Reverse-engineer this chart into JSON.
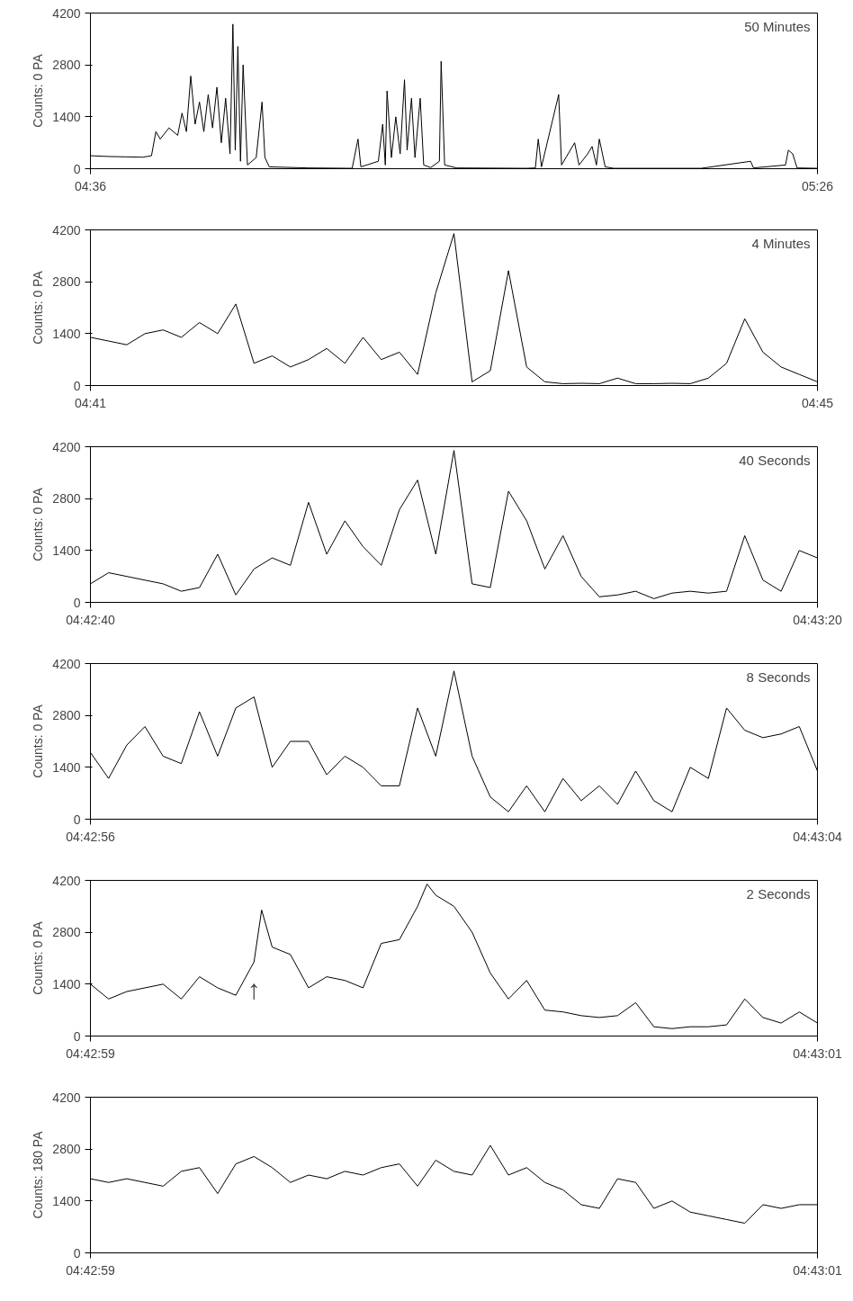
{
  "chart_data": [
    {
      "type": "line",
      "ylabel": "Counts: 0 PA",
      "annotations": [
        "50 Minutes"
      ],
      "xlim": [
        4.6,
        5.433333
      ],
      "xticks": [
        {
          "value": 4.6,
          "label": "04:36"
        },
        {
          "value": 5.433333,
          "label": "05:26"
        }
      ],
      "ylim": [
        0,
        4200
      ],
      "yticks": [
        0,
        1400,
        2800,
        4200
      ],
      "series": [
        {
          "color": "#000000",
          "x": [
            4.6,
            4.62,
            4.64,
            4.66,
            4.67,
            4.675,
            4.68,
            4.69,
            4.7,
            4.705,
            4.71,
            4.715,
            4.72,
            4.725,
            4.73,
            4.735,
            4.74,
            4.745,
            4.75,
            4.755,
            4.76,
            4.7633,
            4.766,
            4.769,
            4.772,
            4.775,
            4.78,
            4.79,
            4.7967,
            4.8,
            4.805,
            4.85,
            4.9,
            4.9067,
            4.91,
            4.93,
            4.935,
            4.938,
            4.94,
            4.945,
            4.95,
            4.955,
            4.96,
            4.963,
            4.968,
            4.972,
            4.978,
            4.982,
            4.99,
            5.0,
            5.002,
            5.006,
            5.02,
            5.1,
            5.11,
            5.1133,
            5.117,
            5.1367,
            5.14,
            5.155,
            5.16,
            5.17,
            5.175,
            5.18,
            5.1833,
            5.19,
            5.2,
            5.3,
            5.3567,
            5.36,
            5.3967,
            5.4,
            5.405,
            5.41,
            5.433333
          ],
          "values": [
            350,
            330,
            320,
            310,
            350,
            1000,
            800,
            1100,
            900,
            1500,
            1000,
            2500,
            1200,
            1800,
            1000,
            2000,
            1100,
            2200,
            700,
            1900,
            400,
            3900,
            500,
            3300,
            200,
            2800,
            100,
            300,
            1800,
            300,
            50,
            20,
            10,
            800,
            50,
            200,
            1200,
            100,
            2100,
            300,
            1400,
            400,
            2400,
            500,
            1900,
            300,
            1900,
            100,
            30,
            200,
            2900,
            100,
            20,
            10,
            20,
            800,
            50,
            2000,
            100,
            700,
            100,
            400,
            600,
            100,
            800,
            50,
            10,
            10,
            200,
            20,
            100,
            500,
            400,
            20,
            10
          ]
        }
      ]
    },
    {
      "type": "line",
      "ylabel": "Counts: 0 PA",
      "annotations": [
        "4 Minutes"
      ],
      "xlim": [
        4.683333,
        4.75
      ],
      "xticks": [
        {
          "value": 4.683333,
          "label": "04:41"
        },
        {
          "value": 4.75,
          "label": "04:45"
        }
      ],
      "ylim": [
        0,
        4200
      ],
      "yticks": [
        0,
        1400,
        2800,
        4200
      ],
      "series": [
        {
          "color": "#000000",
          "x": [
            4.683333,
            4.685,
            4.686667,
            4.688333,
            4.69,
            4.691667,
            4.693333,
            4.695,
            4.696667,
            4.698333,
            4.7,
            4.701667,
            4.703333,
            4.705,
            4.706667,
            4.708333,
            4.71,
            4.711667,
            4.713333,
            4.715,
            4.716667,
            4.718333,
            4.72,
            4.721667,
            4.723333,
            4.725,
            4.726667,
            4.728333,
            4.73,
            4.731667,
            4.733333,
            4.735,
            4.736667,
            4.738333,
            4.74,
            4.741667,
            4.743333,
            4.745,
            4.746667,
            4.748333,
            4.75
          ],
          "values": [
            1300,
            1200,
            1100,
            1400,
            1500,
            1300,
            1700,
            1400,
            2200,
            600,
            800,
            500,
            700,
            1000,
            600,
            1300,
            700,
            900,
            300,
            2500,
            4100,
            100,
            400,
            3100,
            500,
            100,
            50,
            60,
            50,
            200,
            50,
            50,
            60,
            50,
            200,
            600,
            1800,
            900,
            500,
            300,
            100
          ]
        }
      ]
    },
    {
      "type": "line",
      "ylabel": "Counts: 0 PA",
      "annotations": [
        "40 Seconds"
      ],
      "xlim": [
        4.711111,
        4.722222
      ],
      "xticks": [
        {
          "value": 4.711111,
          "label": "04:42:40"
        },
        {
          "value": 4.722222,
          "label": "04:43:20"
        }
      ],
      "ylim": [
        0,
        4200
      ],
      "yticks": [
        0,
        1400,
        2800,
        4200
      ],
      "series": [
        {
          "color": "#000000",
          "x": [
            4.711111,
            4.711389,
            4.711667,
            4.711944,
            4.712222,
            4.7125,
            4.712778,
            4.713056,
            4.713333,
            4.713611,
            4.713889,
            4.714167,
            4.714444,
            4.714722,
            4.715,
            4.715278,
            4.715556,
            4.715833,
            4.716111,
            4.716389,
            4.716667,
            4.716944,
            4.717222,
            4.7175,
            4.717778,
            4.718056,
            4.718333,
            4.718611,
            4.718889,
            4.719167,
            4.719444,
            4.719722,
            4.72,
            4.720278,
            4.720556,
            4.720833,
            4.721111,
            4.721389,
            4.721667,
            4.721944,
            4.722222
          ],
          "values": [
            500,
            800,
            700,
            600,
            500,
            300,
            400,
            1300,
            200,
            900,
            1200,
            1000,
            2700,
            1300,
            2200,
            1500,
            1000,
            2500,
            3300,
            1300,
            4100,
            500,
            400,
            3000,
            2200,
            900,
            1800,
            700,
            150,
            200,
            300,
            100,
            250,
            300,
            250,
            300,
            1800,
            600,
            300,
            1400,
            1200
          ]
        }
      ]
    },
    {
      "type": "line",
      "ylabel": "Counts: 0 PA",
      "annotations": [
        "8 Seconds"
      ],
      "xlim": [
        4.7155556,
        4.7177778
      ],
      "xticks": [
        {
          "value": 4.7155556,
          "label": "04:42:56"
        },
        {
          "value": 4.7177778,
          "label": "04:43:04"
        }
      ],
      "ylim": [
        0,
        4200
      ],
      "yticks": [
        0,
        1400,
        2800,
        4200
      ],
      "series": [
        {
          "color": "#000000",
          "x": [
            4.7155556,
            4.7156111,
            4.7156667,
            4.7157222,
            4.7157778,
            4.7158333,
            4.7158889,
            4.7159444,
            4.716,
            4.7160556,
            4.7161111,
            4.7161667,
            4.7162222,
            4.7162778,
            4.7163333,
            4.7163889,
            4.7164444,
            4.7165,
            4.7165556,
            4.7166111,
            4.7166667,
            4.7167222,
            4.7167778,
            4.7168333,
            4.7168889,
            4.7169444,
            4.717,
            4.7170556,
            4.7171111,
            4.7171667,
            4.7172222,
            4.7172778,
            4.7173333,
            4.7173889,
            4.7174444,
            4.7175,
            4.7175556,
            4.7176111,
            4.7176667,
            4.7177222,
            4.7177778
          ],
          "values": [
            1800,
            1100,
            2000,
            2500,
            1700,
            1500,
            2900,
            1700,
            3000,
            3300,
            1400,
            2100,
            2100,
            1200,
            1700,
            1400,
            900,
            900,
            3000,
            1700,
            4000,
            1700,
            600,
            200,
            900,
            200,
            1100,
            500,
            900,
            400,
            1300,
            500,
            200,
            1400,
            1100,
            3000,
            2400,
            2200,
            2300,
            2500,
            1300
          ]
        }
      ]
    },
    {
      "type": "line",
      "ylabel": "Counts: 0 PA",
      "annotations": [
        "2 Seconds",
        {
          "text": "↑",
          "x": 4.71651389,
          "y": 2000
        }
      ],
      "xlim": [
        4.71638889,
        4.71694444
      ],
      "xticks": [
        {
          "value": 4.71638889,
          "label": "04:42:59"
        },
        {
          "value": 4.71694444,
          "label": "04:43:01"
        }
      ],
      "ylim": [
        0,
        4200
      ],
      "yticks": [
        0,
        1400,
        2800,
        4200
      ],
      "series": [
        {
          "color": "#000000",
          "x": [
            4.71638889,
            4.71640278,
            4.71641667,
            4.71643056,
            4.71644444,
            4.71645833,
            4.71647222,
            4.71648611,
            4.7165,
            4.71651389,
            4.71651972,
            4.71652778,
            4.71654167,
            4.71655556,
            4.71656944,
            4.71658333,
            4.71659722,
            4.71661111,
            4.716625,
            4.71663889,
            4.71664611,
            4.71665278,
            4.71666667,
            4.71668056,
            4.71669444,
            4.71670833,
            4.71672222,
            4.71673611,
            4.71675,
            4.71676389,
            4.71677778,
            4.71679167,
            4.71680556,
            4.71681944,
            4.71683333,
            4.71684722,
            4.71686111,
            4.716875,
            4.71688889,
            4.71690278,
            4.71691667,
            4.71693056,
            4.71694444
          ],
          "values": [
            1400,
            1000,
            1200,
            1300,
            1400,
            1000,
            1600,
            1300,
            1100,
            2000,
            3400,
            2400,
            2200,
            1300,
            1600,
            1500,
            1300,
            2500,
            2600,
            3500,
            4100,
            3800,
            3500,
            2800,
            1700,
            1000,
            1500,
            700,
            650,
            550,
            500,
            550,
            900,
            250,
            200,
            250,
            250,
            300,
            1000,
            500,
            350,
            650,
            350
          ]
        }
      ]
    },
    {
      "type": "line",
      "ylabel": "Counts: 180 PA",
      "xlim": [
        4.71638889,
        4.71694444
      ],
      "xticks": [
        {
          "value": 4.71638889,
          "label": "04:42:59"
        },
        {
          "value": 4.71694444,
          "label": "04:43:01"
        }
      ],
      "ylim": [
        0,
        4200
      ],
      "yticks": [
        0,
        1400,
        2800,
        4200
      ],
      "series": [
        {
          "color": "#000000",
          "x": [
            4.71638889,
            4.71640278,
            4.71641667,
            4.71643056,
            4.71644444,
            4.71645833,
            4.71647222,
            4.71648611,
            4.7165,
            4.71651389,
            4.71652778,
            4.71654167,
            4.71655556,
            4.71656944,
            4.71658333,
            4.71659722,
            4.71661111,
            4.716625,
            4.71663889,
            4.71665278,
            4.71666667,
            4.71668056,
            4.71669444,
            4.71670833,
            4.71672222,
            4.71673611,
            4.71675,
            4.71676389,
            4.71677778,
            4.71679167,
            4.71680556,
            4.71681944,
            4.71683333,
            4.71684722,
            4.71686111,
            4.716875,
            4.71688889,
            4.71690278,
            4.71691667,
            4.71693056,
            4.71694444
          ],
          "values": [
            2000,
            1900,
            2000,
            1900,
            1800,
            2200,
            2300,
            1600,
            2400,
            2600,
            2300,
            1900,
            2100,
            2000,
            2200,
            2100,
            2300,
            2400,
            1800,
            2500,
            2200,
            2100,
            2900,
            2100,
            2300,
            1900,
            1700,
            1300,
            1200,
            2000,
            1900,
            1200,
            1400,
            1100,
            1000,
            900,
            800,
            1300,
            1200,
            1300,
            1300
          ]
        }
      ]
    }
  ]
}
